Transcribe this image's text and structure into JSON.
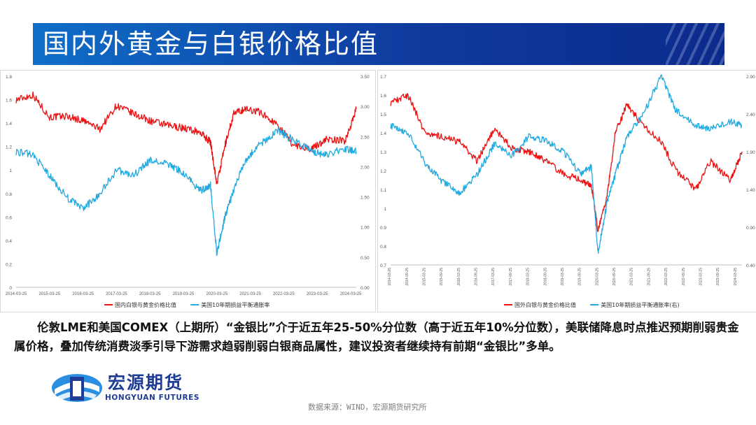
{
  "title": "国内外黄金与白银价格比值",
  "body_text": "伦敦LME和美国COMEX（上期所）“金银比”介于近五年25-50%分位数（高于近五年10%分位数），美联储降息时点推迟预期削弱贵金属价格，叠加传统消费淡季引导下游需求趋弱削弱白银商品属性，建议投资者继续持有前期“金银比”多单。",
  "logo": {
    "cn": "宏源期货",
    "en": "HONGYUAN FUTURES"
  },
  "source": "数据来源：WIND，宏源期货研究所",
  "colors": {
    "red": "#ee1111",
    "blue": "#22a9e0",
    "banner": "#0f3a9e"
  },
  "chart_data": [
    {
      "type": "line",
      "title": "",
      "x_ticks": [
        "2014-03-25",
        "2015-03-25",
        "2016-03-25",
        "2017-03-25",
        "2018-03-25",
        "2019-03-25",
        "2020-03-25",
        "2021-03-25",
        "2022-03-25",
        "2023-03-25",
        "2024-03-25"
      ],
      "x": [
        "2014-03-25",
        "2014-09-25",
        "2015-03-25",
        "2015-09-25",
        "2016-03-25",
        "2016-09-25",
        "2017-03-25",
        "2017-09-25",
        "2018-03-25",
        "2018-09-25",
        "2019-03-25",
        "2019-09-25",
        "2020-01-15",
        "2020-03-25",
        "2020-06-25",
        "2020-09-25",
        "2021-01-25",
        "2021-06-25",
        "2022-01-25",
        "2022-06-25",
        "2023-01-25",
        "2023-06-25",
        "2024-01-25",
        "2024-05-25"
      ],
      "y_left_ticks": [
        "0",
        "0.2",
        "0.4",
        "0.6",
        "0.8",
        "1",
        "1.2",
        "1.4",
        "1.6",
        "1.8"
      ],
      "y_right_ticks": [
        "0.00",
        "0.50",
        "1.00",
        "1.50",
        "2.00",
        "2.50",
        "3.00",
        "3.50"
      ],
      "ylim_left": [
        0,
        1.8
      ],
      "ylim_right": [
        0,
        3.5
      ],
      "series": [
        {
          "name": "国内白银与黄金价格比值",
          "axis": "left",
          "color": "#ee1111",
          "values": [
            1.6,
            1.64,
            1.45,
            1.46,
            1.42,
            1.35,
            1.55,
            1.48,
            1.42,
            1.38,
            1.36,
            1.32,
            1.24,
            0.88,
            1.22,
            1.48,
            1.52,
            1.5,
            1.38,
            1.22,
            1.18,
            1.26,
            1.25,
            1.52
          ]
        },
        {
          "name": "美国10年期损益平衡通胀率",
          "axis": "right",
          "color": "#22a9e0",
          "values": [
            2.25,
            2.2,
            1.85,
            1.5,
            1.3,
            1.55,
            1.95,
            1.85,
            2.1,
            2.05,
            1.9,
            1.6,
            1.7,
            0.55,
            1.2,
            1.6,
            2.1,
            2.35,
            2.6,
            2.45,
            2.25,
            2.2,
            2.3,
            2.25
          ]
        }
      ]
    },
    {
      "type": "line",
      "title": "",
      "x_ticks": [
        "2014-03-25",
        "2014-09-25",
        "2015-03-25",
        "2015-09-25",
        "2016-03-25",
        "2016-09-25",
        "2017-03-25",
        "2017-09-25",
        "2018-03-25",
        "2018-09-25",
        "2019-03-25",
        "2019-09-25",
        "2020-03-25",
        "2020-09-25",
        "2021-03-25",
        "2021-09-25",
        "2022-03-25",
        "2022-09-25",
        "2023-03-25",
        "2023-09-25",
        "2024-03-25"
      ],
      "x": [
        "2014-03-25",
        "2014-09-25",
        "2015-03-25",
        "2015-09-25",
        "2016-03-25",
        "2016-09-25",
        "2017-03-25",
        "2017-09-25",
        "2018-03-25",
        "2018-09-25",
        "2019-03-25",
        "2019-09-25",
        "2020-01-15",
        "2020-03-25",
        "2020-06-25",
        "2020-09-25",
        "2021-01-25",
        "2021-06-25",
        "2022-01-25",
        "2022-06-25",
        "2023-01-25",
        "2023-06-25",
        "2024-01-25",
        "2024-05-25"
      ],
      "y_left_ticks": [
        "0.7",
        "0.8",
        "0.9",
        "1",
        "1.1",
        "1.2",
        "1.3",
        "1.4",
        "1.5",
        "1.6",
        "1.7"
      ],
      "y_right_ticks": [
        "0.40",
        "0.90",
        "1.40",
        "1.90",
        "2.40",
        "2.90"
      ],
      "ylim_left": [
        0.7,
        1.7
      ],
      "ylim_right": [
        0.4,
        2.9
      ],
      "series": [
        {
          "name": "国外白银与黄金价格比值",
          "axis": "left",
          "color": "#ee1111",
          "values": [
            1.56,
            1.6,
            1.4,
            1.38,
            1.35,
            1.25,
            1.42,
            1.32,
            1.3,
            1.25,
            1.18,
            1.15,
            1.12,
            0.88,
            1.05,
            1.4,
            1.55,
            1.45,
            1.35,
            1.2,
            1.1,
            1.25,
            1.15,
            1.3
          ]
        },
        {
          "name": "美国10年期损益平衡通胀率(右)",
          "axis": "right",
          "color": "#22a9e0",
          "values": [
            2.25,
            2.15,
            1.75,
            1.5,
            1.35,
            1.6,
            2.0,
            1.85,
            2.1,
            2.05,
            1.9,
            1.6,
            1.7,
            0.55,
            1.2,
            1.6,
            2.1,
            2.35,
            2.9,
            2.45,
            2.25,
            2.2,
            2.3,
            2.25
          ]
        }
      ]
    }
  ]
}
